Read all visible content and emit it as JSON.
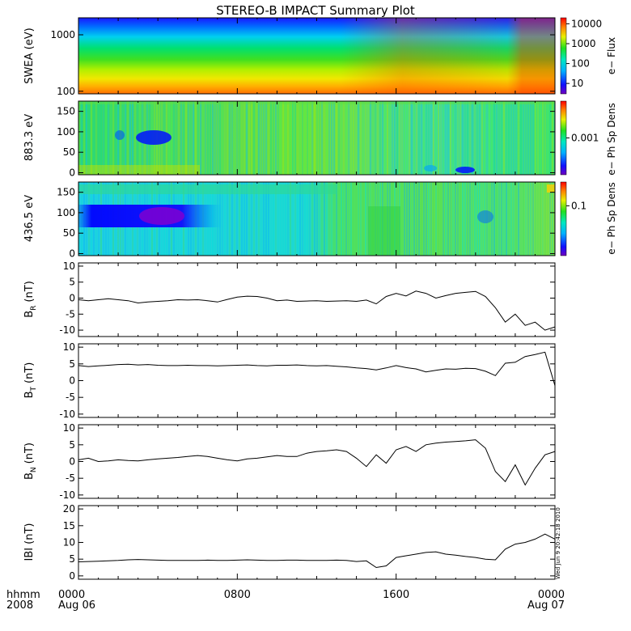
{
  "figure": {
    "title": "STEREO-B IMPACT Summary Plot",
    "timestamp": "Wed Jun  9 20:42:18 2010",
    "time_axis": {
      "unit_label": "hhmm",
      "year_label": "2008",
      "ticks": [
        {
          "hour": 0,
          "label": "0000",
          "sublabel": "Aug 06"
        },
        {
          "hour": 8,
          "label": "0800",
          "sublabel": ""
        },
        {
          "hour": 16,
          "label": "1600",
          "sublabel": ""
        },
        {
          "hour": 24,
          "label": "0000",
          "sublabel": "Aug 07"
        }
      ]
    }
  },
  "chart_data": [
    {
      "type": "heatmap",
      "ylabel": "SWEA (eV)",
      "yscale": "log",
      "ylim": [
        90,
        2000
      ],
      "yticks": [
        100,
        1000
      ],
      "ytick_labels": [
        "100",
        "1000"
      ],
      "xlim": [
        0,
        24
      ],
      "colorbar": {
        "label": "e− Flux",
        "scale": "log",
        "range": [
          3,
          20000
        ],
        "ticks": [
          10,
          100,
          1000,
          10000
        ],
        "tick_labels": [
          "10",
          "100",
          "1000",
          "10000"
        ]
      }
    },
    {
      "type": "heatmap",
      "ylabel": "883.3 eV",
      "ylim": [
        -5,
        175
      ],
      "yticks": [
        0,
        50,
        100,
        150
      ],
      "xlim": [
        0,
        24
      ],
      "colorbar": {
        "label": "e− Ph Sp Dens",
        "scale": "log",
        "range": [
          0.0001,
          0.01
        ],
        "ticks": [
          0.001
        ],
        "tick_labels": [
          "0.001"
        ]
      }
    },
    {
      "type": "heatmap",
      "ylabel": "436.5 eV",
      "ylim": [
        -5,
        175
      ],
      "yticks": [
        0,
        50,
        100,
        150
      ],
      "xlim": [
        0,
        24
      ],
      "colorbar": {
        "label": "e− Ph Sp Dens",
        "scale": "log",
        "range": [
          0.01,
          0.3
        ],
        "ticks": [
          0.1
        ],
        "tick_labels": [
          "0.1"
        ]
      }
    },
    {
      "type": "line",
      "ylabel": "B",
      "ylabel_sub": "R",
      "ylabel_unit": "(nT)",
      "ylim": [
        -12,
        11
      ],
      "yticks": [
        -10,
        -5,
        0,
        5,
        10
      ],
      "xlim": [
        0,
        24
      ],
      "x": [
        0,
        0.5,
        1,
        1.5,
        2,
        2.5,
        3,
        3.5,
        4,
        4.5,
        5,
        5.5,
        6,
        6.5,
        7,
        7.5,
        8,
        8.5,
        9,
        9.5,
        10,
        10.5,
        11,
        11.5,
        12,
        12.5,
        13,
        13.5,
        14,
        14.5,
        15,
        15.5,
        16,
        16.5,
        17,
        17.5,
        18,
        18.5,
        19,
        19.5,
        20,
        20.5,
        21,
        21.5,
        22,
        22.5,
        23,
        23.5,
        24
      ],
      "y": [
        -0.5,
        -0.8,
        -0.5,
        -0.2,
        -0.5,
        -0.8,
        -1.5,
        -1.2,
        -1,
        -0.8,
        -0.5,
        -0.6,
        -0.5,
        -0.8,
        -1.2,
        -0.4,
        0.3,
        0.6,
        0.5,
        0,
        -0.8,
        -0.6,
        -1,
        -0.9,
        -0.8,
        -1,
        -0.9,
        -0.8,
        -1,
        -0.6,
        -1.8,
        0.5,
        1.5,
        0.7,
        2.2,
        1.5,
        0,
        0.8,
        1.5,
        1.8,
        2.1,
        0.5,
        -3,
        -7.5,
        -5,
        -8.5,
        -7.5,
        -10,
        -9
      ]
    },
    {
      "type": "line",
      "ylabel": "B",
      "ylabel_sub": "T",
      "ylabel_unit": "(nT)",
      "ylim": [
        -11,
        11
      ],
      "yticks": [
        -10,
        -5,
        0,
        5,
        10
      ],
      "xlim": [
        0,
        24
      ],
      "x": [
        0,
        0.5,
        1,
        1.5,
        2,
        2.5,
        3,
        3.5,
        4,
        4.5,
        5,
        5.5,
        6,
        6.5,
        7,
        7.5,
        8,
        8.5,
        9,
        9.5,
        10,
        10.5,
        11,
        11.5,
        12,
        12.5,
        13,
        13.5,
        14,
        14.5,
        15,
        15.5,
        16,
        16.5,
        17,
        17.5,
        18,
        18.5,
        19,
        19.5,
        20,
        20.5,
        21,
        21.5,
        22,
        22.5,
        23,
        23.5,
        24
      ],
      "y": [
        4.5,
        4.2,
        4.4,
        4.6,
        4.8,
        4.9,
        4.7,
        4.8,
        4.6,
        4.5,
        4.5,
        4.6,
        4.5,
        4.5,
        4.4,
        4.5,
        4.6,
        4.7,
        4.5,
        4.4,
        4.6,
        4.6,
        4.7,
        4.5,
        4.4,
        4.5,
        4.3,
        4.1,
        3.8,
        3.6,
        3.2,
        3.8,
        4.5,
        3.9,
        3.5,
        2.6,
        3.1,
        3.5,
        3.4,
        3.7,
        3.6,
        2.8,
        1.5,
        5.2,
        5.5,
        7.2,
        7.8,
        8.5,
        -1.5
      ]
    },
    {
      "type": "line",
      "ylabel": "B",
      "ylabel_sub": "N",
      "ylabel_unit": "(nT)",
      "ylim": [
        -11,
        11
      ],
      "yticks": [
        -10,
        -5,
        0,
        5,
        10
      ],
      "xlim": [
        0,
        24
      ],
      "x": [
        0,
        0.5,
        1,
        1.5,
        2,
        2.5,
        3,
        3.5,
        4,
        4.5,
        5,
        5.5,
        6,
        6.5,
        7,
        7.5,
        8,
        8.5,
        9,
        9.5,
        10,
        10.5,
        11,
        11.5,
        12,
        12.5,
        13,
        13.5,
        14,
        14.5,
        15,
        15.5,
        16,
        16.5,
        17,
        17.5,
        18,
        18.5,
        19,
        19.5,
        20,
        20.5,
        21,
        21.5,
        22,
        22.5,
        23,
        23.5,
        24
      ],
      "y": [
        0.5,
        1,
        0,
        0.2,
        0.5,
        0.3,
        0.2,
        0.5,
        0.8,
        1,
        1.2,
        1.5,
        1.8,
        1.5,
        1,
        0.5,
        0.2,
        0.8,
        1,
        1.4,
        1.8,
        1.5,
        1.5,
        2.5,
        3,
        3.2,
        3.5,
        3,
        1,
        -1.5,
        2,
        -0.5,
        3.5,
        4.5,
        3,
        5,
        5.5,
        5.8,
        6,
        6.2,
        6.5,
        4,
        -3,
        -6,
        -1,
        -7,
        -2,
        2,
        3
      ]
    },
    {
      "type": "line",
      "ylabel": "IBI",
      "ylabel_unit": "(nT)",
      "ylim": [
        -1,
        21
      ],
      "yticks": [
        0,
        5,
        10,
        15,
        20
      ],
      "xlim": [
        0,
        24
      ],
      "x": [
        0,
        0.5,
        1,
        1.5,
        2,
        2.5,
        3,
        3.5,
        4,
        4.5,
        5,
        5.5,
        6,
        6.5,
        7,
        7.5,
        8,
        8.5,
        9,
        9.5,
        10,
        10.5,
        11,
        11.5,
        12,
        12.5,
        13,
        13.5,
        14,
        14.5,
        15,
        15.5,
        16,
        16.5,
        17,
        17.5,
        18,
        18.5,
        19,
        19.5,
        20,
        20.5,
        21,
        21.5,
        22,
        22.5,
        23,
        23.5,
        24
      ],
      "y": [
        4.2,
        4.3,
        4.4,
        4.5,
        4.6,
        4.8,
        4.9,
        4.8,
        4.7,
        4.6,
        4.6,
        4.6,
        4.6,
        4.7,
        4.6,
        4.6,
        4.7,
        4.8,
        4.7,
        4.6,
        4.6,
        4.7,
        4.7,
        4.6,
        4.6,
        4.6,
        4.7,
        4.6,
        4.3,
        4.5,
        2.5,
        3,
        5.5,
        6,
        6.5,
        7,
        7.2,
        6.5,
        6.2,
        5.8,
        5.5,
        5,
        4.8,
        8,
        9.5,
        10,
        11,
        12.5,
        11
      ]
    }
  ]
}
